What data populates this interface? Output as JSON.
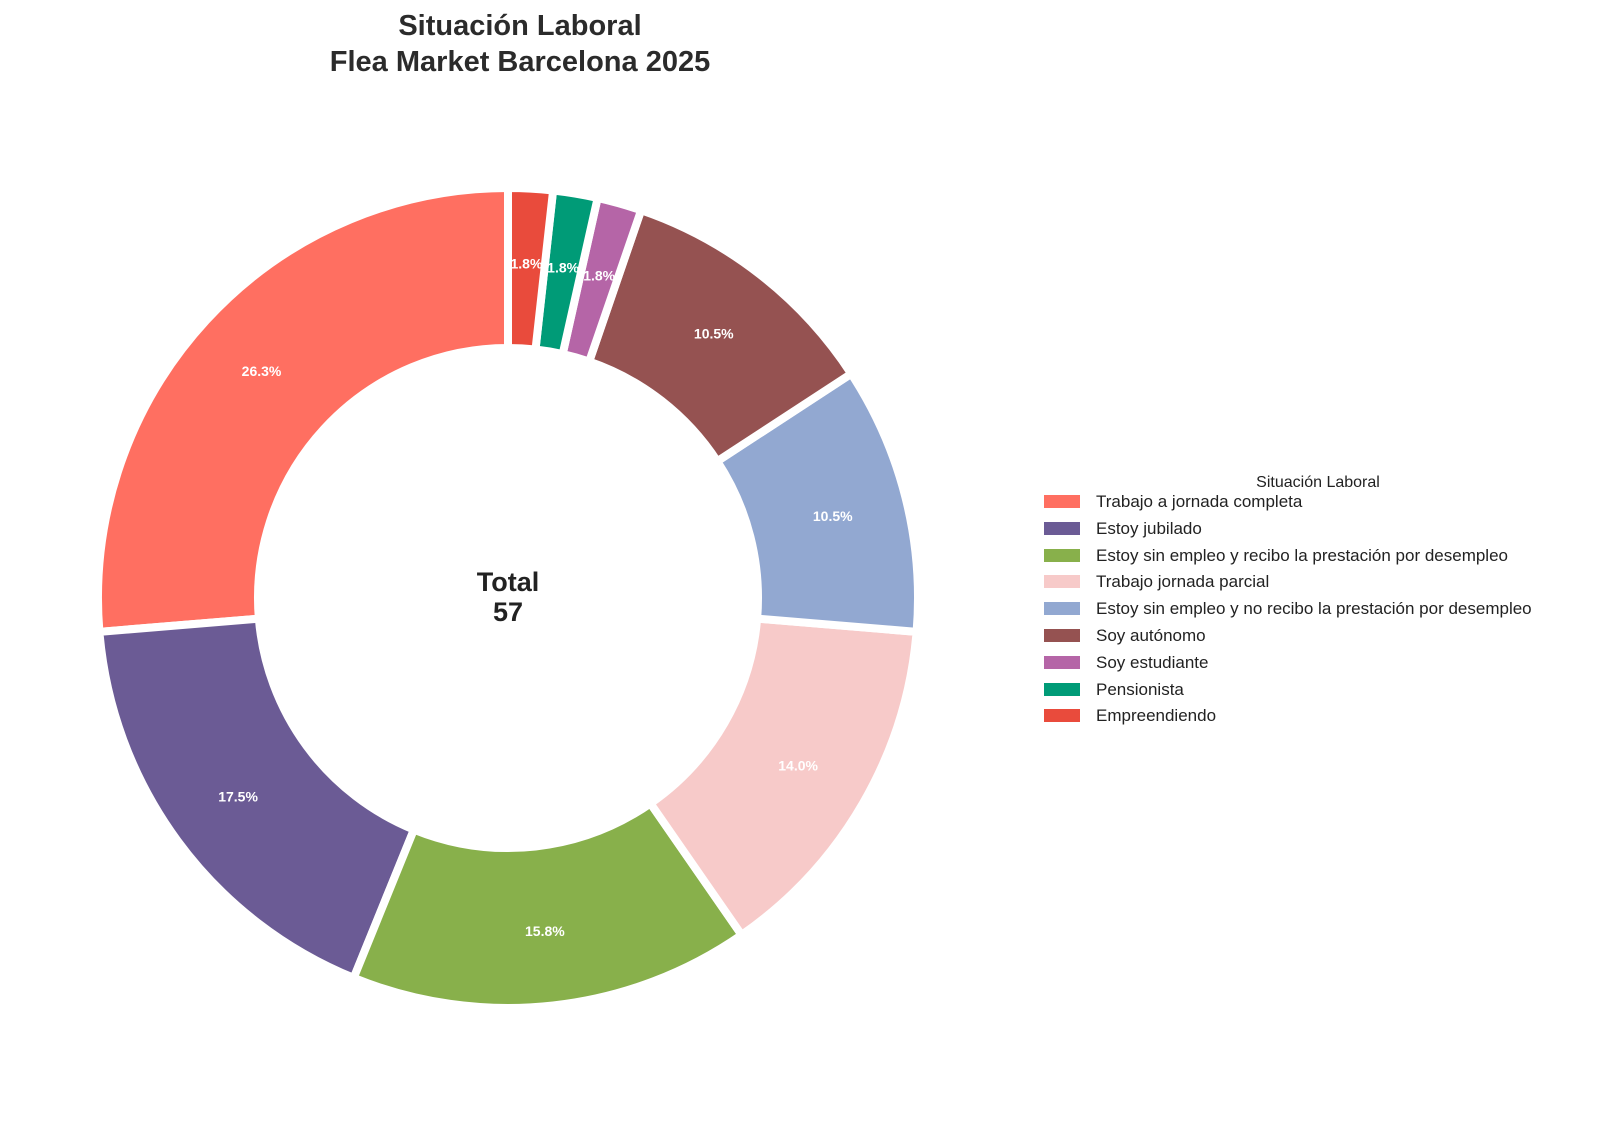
{
  "chart_data": {
    "type": "pie",
    "variant": "donut",
    "title": [
      "Situación Laboral",
      "Flea Market Barcelona 2025"
    ],
    "center_label": {
      "title": "Total",
      "value": "57"
    },
    "legend_title": "Situación Laboral",
    "legend_position": "right",
    "start_angle_deg": 90,
    "direction": "counterclockwise",
    "slices": [
      {
        "label": "Trabajo a jornada completa",
        "count": 15,
        "percent_label": "26.3%",
        "color": "#FF6F61"
      },
      {
        "label": "Estoy jubilado",
        "count": 10,
        "percent_label": "17.5%",
        "color": "#6B5B95"
      },
      {
        "label": "Estoy sin empleo y recibo la prestación por desempleo",
        "count": 9,
        "percent_label": "15.8%",
        "color": "#88B04B"
      },
      {
        "label": "Trabajo jornada parcial",
        "count": 8,
        "percent_label": "14.0%",
        "color": "#F7CAC9"
      },
      {
        "label": "Estoy sin empleo y no recibo la prestación por desempleo",
        "count": 6,
        "percent_label": "10.5%",
        "color": "#92A8D1"
      },
      {
        "label": "Soy autónomo",
        "count": 6,
        "percent_label": "10.5%",
        "color": "#955251"
      },
      {
        "label": "Soy estudiante",
        "count": 1,
        "percent_label": "1.8%",
        "color": "#B565A7"
      },
      {
        "label": "Pensionista",
        "count": 1,
        "percent_label": "1.8%",
        "color": "#009B77"
      },
      {
        "label": "Empreendiendo",
        "count": 1,
        "percent_label": "1.8%",
        "color": "#E94B3C"
      }
    ]
  }
}
